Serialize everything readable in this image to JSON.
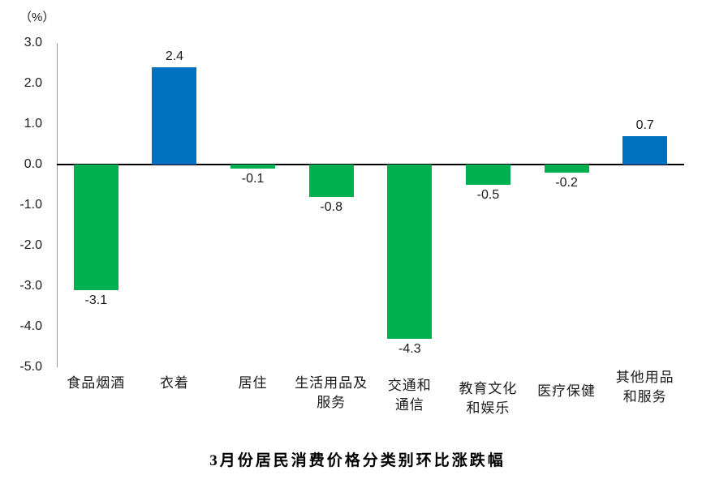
{
  "chart_data": {
    "type": "bar",
    "title": "3月份居民消费价格分类别环比涨跌幅",
    "unit_label": "（%）",
    "xlabel": "",
    "ylabel": "",
    "categories": [
      "食品烟酒",
      "衣着",
      "居住",
      "生活用品及\n服务",
      "交通和\n通信",
      "教育文化\n和娱乐",
      "医疗保健",
      "其他用品\n和服务"
    ],
    "values": [
      -3.1,
      2.4,
      -0.1,
      -0.8,
      -4.3,
      -0.5,
      -0.2,
      0.7
    ],
    "data_labels": [
      "-3.1",
      "2.4",
      "-0.1",
      "-0.8",
      "-4.3",
      "-0.5",
      "-0.2",
      "0.7"
    ],
    "ylim": [
      -5.0,
      3.0
    ],
    "ytick_step": 1.0,
    "ytick_labels": [
      "3.0",
      "2.0",
      "1.0",
      "0.0",
      "-1.0",
      "-2.0",
      "-3.0",
      "-4.0",
      "-5.0"
    ],
    "colors": {
      "positive": "#0070C0",
      "negative": "#00B050",
      "axis": "#000000",
      "y_axis_line": "#9a9a9a"
    },
    "grid": false,
    "legend": false
  }
}
